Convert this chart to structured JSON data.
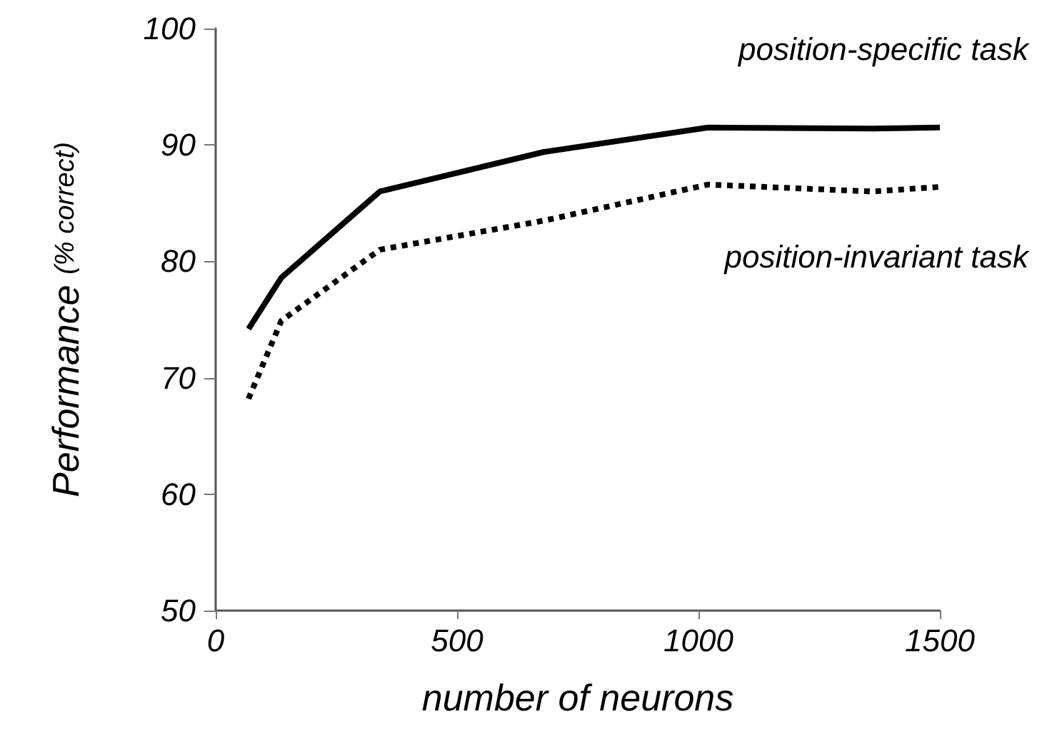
{
  "chart_data": {
    "type": "line",
    "xlabel": "number of neurons",
    "ylabel": "Performance $_{(% correct)}$",
    "x": [
      68,
      136,
      340,
      680,
      1020,
      1360,
      1500
    ],
    "series": [
      {
        "name": "position-specific task",
        "color": "#000000",
        "line_style": "solid",
        "values": [
          74.2,
          78.6,
          86.0,
          89.4,
          91.5,
          91.4,
          91.5
        ]
      },
      {
        "name": "position-invariant task",
        "color": "#000000",
        "line_style": "dotted",
        "values": [
          68.2,
          74.9,
          81.0,
          83.5,
          86.6,
          86.0,
          86.4
        ]
      }
    ],
    "xlim": [
      0,
      1500
    ],
    "xticks": [
      0,
      500,
      1000,
      1500
    ],
    "ylim": [
      50,
      100
    ],
    "yticks": [
      50,
      60,
      70,
      80,
      90,
      100
    ],
    "grid": false,
    "legend": false,
    "marker": "none"
  }
}
